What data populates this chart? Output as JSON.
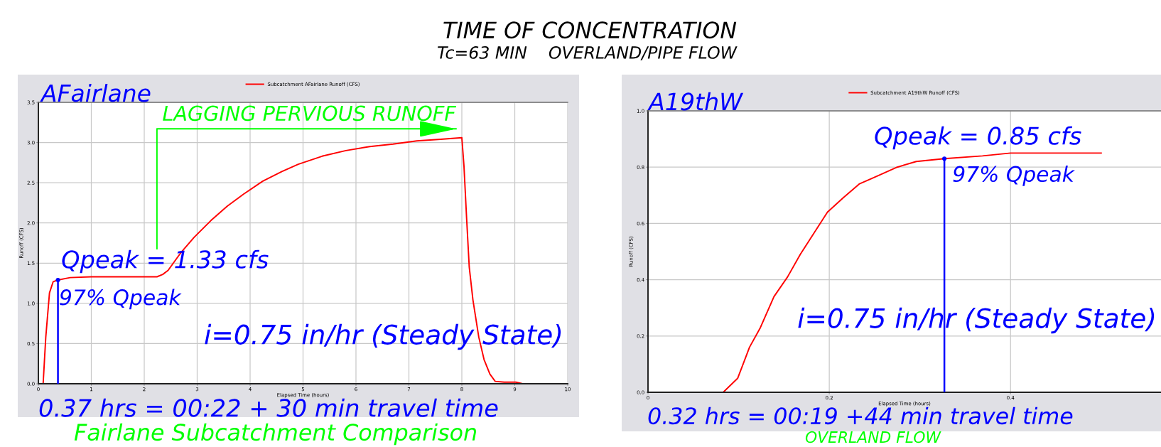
{
  "chart_data": [
    {
      "type": "other",
      "title": "TIME OF CONCENTRATION",
      "subtitle": "Tc=63 MIN    OVERLAND/PIPE FLOW"
    },
    {
      "type": "line",
      "title": "AFairlane",
      "xlabel": "Elapsed Time (hours)",
      "ylabel": "Runoff (CFS)",
      "xlim": [
        0,
        10
      ],
      "ylim": [
        0,
        3.5
      ],
      "xticks": [
        0,
        1,
        2,
        3,
        4,
        5,
        6,
        7,
        8,
        9,
        10
      ],
      "yticks": [
        {
          "value": 0,
          "label": "0.0"
        },
        0.5,
        {
          "value": 1,
          "label": "1.0"
        },
        1.5,
        {
          "value": 2,
          "label": "2.0"
        },
        2.5,
        {
          "value": 3,
          "label": "3.0"
        },
        3.5
      ],
      "grid": true,
      "legend": "top",
      "series": [
        {
          "name": "Subcatchment AFairlane Runoff (CFS)",
          "color": "#ff0000",
          "x": [
            0,
            0.09,
            0.14,
            0.21,
            0.28,
            0.37,
            0.6,
            1.0,
            1.5,
            2.0,
            2.24,
            2.35,
            2.45,
            2.68,
            2.94,
            3.26,
            3.57,
            3.88,
            4.24,
            4.6,
            4.91,
            5.36,
            5.81,
            6.26,
            6.7,
            7.15,
            7.6,
            8.0,
            8.04,
            8.09,
            8.14,
            8.21,
            8.32,
            8.42,
            8.53,
            8.63,
            8.8,
            9.02,
            9.15,
            10
          ],
          "values": [
            0,
            0,
            0.58,
            1.13,
            1.27,
            1.29,
            1.32,
            1.33,
            1.33,
            1.33,
            1.33,
            1.36,
            1.41,
            1.62,
            1.82,
            2.03,
            2.21,
            2.36,
            2.52,
            2.64,
            2.73,
            2.83,
            2.9,
            2.95,
            2.98,
            3.02,
            3.04,
            3.06,
            2.71,
            2.06,
            1.45,
            1.04,
            0.58,
            0.3,
            0.12,
            0.03,
            0.02,
            0.02,
            0,
            0
          ]
        },
        {
          "type": "lollipop",
          "color": "#0000ff",
          "x": [
            0.37
          ],
          "values": [
            1.29
          ]
        },
        {
          "type": "line",
          "color": "#00ff00",
          "x": [
            2.24,
            2.24,
            7.89
          ],
          "values": [
            1.68,
            3.17,
            3.17
          ]
        }
      ],
      "annotations": [
        "Qpeak = 1.33 cfs",
        {
          "text": "97% Qpeak",
          "x": 0.37,
          "y": 1.29
        },
        "i=0.75 in/hr (Steady State)",
        "0.37 hrs = 00:22 + 30 min travel time",
        "Fairlane Subcatchment Comparison",
        {
          "text": "LAGGING PERVIOUS RUNOFF",
          "x": 7.89,
          "y": 3.17
        }
      ]
    },
    {
      "type": "line",
      "title": "A19thW",
      "xlabel": "Elapsed Time (hours)",
      "ylabel": "Runoff (CFS)",
      "xlim": [
        0,
        0.566
      ],
      "ylim": [
        0,
        1
      ],
      "xticks": [
        0,
        0.2,
        0.4
      ],
      "yticks": [
        {
          "value": 0,
          "label": "0.0"
        },
        0.2,
        0.4,
        0.6,
        0.8,
        {
          "value": 1,
          "label": "1.0"
        }
      ],
      "grid": true,
      "legend": "top",
      "series": [
        {
          "name": "Subcatchment A19thW Runoff (CFS)",
          "color": "#ff0000",
          "x": [
            0,
            0.083,
            0.099,
            0.112,
            0.124,
            0.139,
            0.154,
            0.168,
            0.184,
            0.198,
            0.215,
            0.233,
            0.254,
            0.275,
            0.296,
            0.327,
            0.369,
            0.4,
            0.448,
            0.5
          ],
          "values": [
            0,
            0,
            0.05,
            0.16,
            0.23,
            0.34,
            0.41,
            0.49,
            0.57,
            0.64,
            0.69,
            0.74,
            0.77,
            0.8,
            0.82,
            0.83,
            0.84,
            0.85,
            0.85,
            0.85
          ]
        },
        {
          "type": "lollipop",
          "color": "#0000ff",
          "x": [
            0.327
          ],
          "values": [
            0.83
          ]
        }
      ],
      "annotations": [
        "Qpeak = 0.85 cfs",
        {
          "text": "97% Qpeak",
          "x": 0.327,
          "y": 0.83
        },
        "i=0.75 in/hr (Steady State)",
        "0.32 hrs = 00:19 +44 min travel time",
        "OVERLAND FLOW"
      ]
    }
  ]
}
